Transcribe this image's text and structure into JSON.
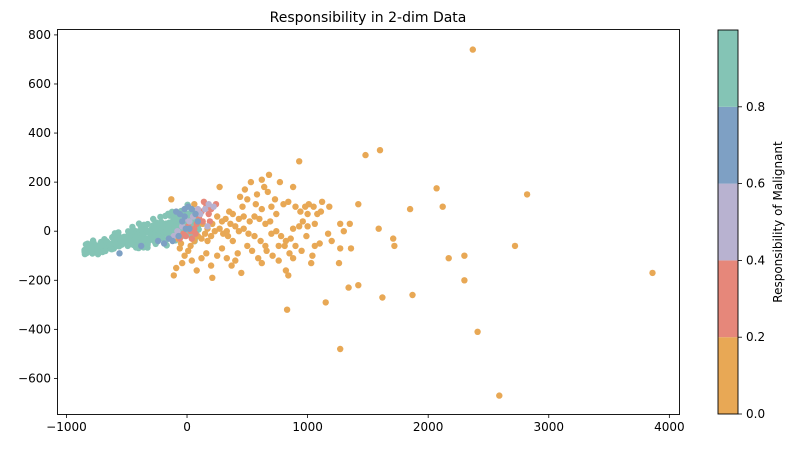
{
  "chart_data": {
    "type": "scatter",
    "title": "Responsibility in 2-dim Data",
    "xlim": [
      -1070,
      4080
    ],
    "ylim": [
      -745,
      820
    ],
    "xticks": [
      -1000,
      0,
      1000,
      2000,
      3000,
      4000
    ],
    "xtick_labels": [
      "−1000",
      "0",
      "1000",
      "2000",
      "3000",
      "4000"
    ],
    "yticks": [
      -600,
      -400,
      -200,
      0,
      200,
      400,
      600,
      800
    ],
    "ytick_labels": [
      "−600",
      "−400",
      "−200",
      "0",
      "200",
      "400",
      "600",
      "800"
    ],
    "grid": false,
    "colorbar": {
      "label": "Responsibility of Malignant",
      "range": [
        0,
        1
      ],
      "ticks": [
        0.0,
        0.2,
        0.4,
        0.6,
        0.8
      ],
      "tick_labels": [
        "0.0",
        "0.2",
        "0.4",
        "0.6",
        "0.8"
      ],
      "bins": [
        {
          "from": 0.0,
          "to": 0.2,
          "color": "#e8a855"
        },
        {
          "from": 0.2,
          "to": 0.4,
          "color": "#e6877a"
        },
        {
          "from": 0.4,
          "to": 0.6,
          "color": "#b8b2d0"
        },
        {
          "from": 0.6,
          "to": 0.8,
          "color": "#7ea0c4"
        },
        {
          "from": 0.8,
          "to": 1.0,
          "color": "#84c4b5"
        }
      ]
    },
    "points": [
      [
        2370,
        740,
        0.0
      ],
      [
        1600,
        330,
        0.0
      ],
      [
        1480,
        310,
        0.0
      ],
      [
        930,
        285,
        0.0
      ],
      [
        2820,
        150,
        0.0
      ],
      [
        2070,
        175,
        0.0
      ],
      [
        2120,
        100,
        0.0
      ],
      [
        1850,
        90,
        0.0
      ],
      [
        1420,
        110,
        0.0
      ],
      [
        1590,
        10,
        0.0
      ],
      [
        3860,
        -170,
        0.0
      ],
      [
        2720,
        -60,
        0.0
      ],
      [
        2300,
        -100,
        0.0
      ],
      [
        2170,
        -110,
        0.0
      ],
      [
        1720,
        -60,
        0.0
      ],
      [
        1710,
        -30,
        0.0
      ],
      [
        1360,
        -70,
        0.0
      ],
      [
        1620,
        -270,
        0.0
      ],
      [
        1870,
        -260,
        0.0
      ],
      [
        2300,
        -200,
        0.0
      ],
      [
        2410,
        -410,
        0.0
      ],
      [
        2590,
        -670,
        0.0
      ],
      [
        1270,
        -480,
        0.0
      ],
      [
        1150,
        -290,
        0.0
      ],
      [
        1420,
        -220,
        0.0
      ],
      [
        1340,
        -230,
        0.0
      ],
      [
        830,
        -320,
        0.0
      ],
      [
        820,
        -160,
        0.0
      ],
      [
        840,
        -180,
        0.0
      ],
      [
        1260,
        -130,
        0.0
      ],
      [
        1270,
        -70,
        0.0
      ],
      [
        1040,
        -100,
        0.0
      ],
      [
        1030,
        -130,
        0.0
      ],
      [
        1100,
        -50,
        0.0
      ],
      [
        1200,
        -40,
        0.0
      ],
      [
        1300,
        0,
        0.0
      ],
      [
        1270,
        30,
        0.0
      ],
      [
        1350,
        30,
        0.0
      ],
      [
        1010,
        110,
        0.0
      ],
      [
        1050,
        100,
        0.0
      ],
      [
        1110,
        80,
        0.0
      ],
      [
        1080,
        70,
        0.0
      ],
      [
        1000,
        70,
        0.0
      ],
      [
        980,
        100,
        0.0
      ],
      [
        940,
        80,
        0.0
      ],
      [
        900,
        100,
        0.0
      ],
      [
        840,
        120,
        0.0
      ],
      [
        800,
        110,
        0.0
      ],
      [
        770,
        200,
        0.0
      ],
      [
        880,
        180,
        0.0
      ],
      [
        620,
        210,
        0.0
      ],
      [
        640,
        180,
        0.0
      ],
      [
        670,
        160,
        0.0
      ],
      [
        530,
        200,
        0.0
      ],
      [
        480,
        170,
        0.0
      ],
      [
        440,
        140,
        0.0
      ],
      [
        500,
        130,
        0.0
      ],
      [
        570,
        110,
        0.0
      ],
      [
        620,
        90,
        0.0
      ],
      [
        700,
        100,
        0.0
      ],
      [
        740,
        70,
        0.0
      ],
      [
        690,
        40,
        0.0
      ],
      [
        650,
        30,
        0.0
      ],
      [
        600,
        50,
        0.0
      ],
      [
        560,
        60,
        0.0
      ],
      [
        520,
        40,
        0.0
      ],
      [
        470,
        60,
        0.0
      ],
      [
        430,
        50,
        0.0
      ],
      [
        400,
        20,
        0.0
      ],
      [
        360,
        30,
        0.0
      ],
      [
        320,
        50,
        0.0
      ],
      [
        290,
        40,
        0.0
      ],
      [
        270,
        180,
        0.0
      ],
      [
        350,
        80,
        0.0
      ],
      [
        380,
        70,
        0.0
      ],
      [
        430,
        0,
        0.0
      ],
      [
        470,
        10,
        0.0
      ],
      [
        510,
        -10,
        0.0
      ],
      [
        560,
        -20,
        0.0
      ],
      [
        610,
        -40,
        0.0
      ],
      [
        650,
        -60,
        0.0
      ],
      [
        700,
        -10,
        0.0
      ],
      [
        740,
        0,
        0.0
      ],
      [
        780,
        -20,
        0.0
      ],
      [
        820,
        -40,
        0.0
      ],
      [
        860,
        -30,
        0.0
      ],
      [
        900,
        -60,
        0.0
      ],
      [
        950,
        -80,
        0.0
      ],
      [
        880,
        10,
        0.0
      ],
      [
        930,
        20,
        0.0
      ],
      [
        960,
        40,
        0.0
      ],
      [
        1000,
        20,
        0.0
      ],
      [
        1060,
        30,
        0.0
      ],
      [
        380,
        -40,
        0.0
      ],
      [
        340,
        -20,
        0.0
      ],
      [
        300,
        -10,
        0.0
      ],
      [
        270,
        10,
        0.0
      ],
      [
        230,
        0,
        0.0
      ],
      [
        200,
        -20,
        0.0
      ],
      [
        170,
        -40,
        0.0
      ],
      [
        150,
        -10,
        0.0
      ],
      [
        120,
        -30,
        0.0
      ],
      [
        90,
        -20,
        0.0
      ],
      [
        60,
        -40,
        0.0
      ],
      [
        30,
        -60,
        0.0
      ],
      [
        10,
        -80,
        0.0
      ],
      [
        -20,
        -100,
        0.0
      ],
      [
        -40,
        -130,
        0.0
      ],
      [
        -60,
        -70,
        0.0
      ],
      [
        -90,
        -150,
        0.0
      ],
      [
        -110,
        -180,
        0.0
      ],
      [
        -80,
        -30,
        0.0
      ],
      [
        -50,
        -50,
        0.0
      ],
      [
        40,
        -120,
        0.0
      ],
      [
        80,
        -160,
        0.0
      ],
      [
        120,
        -110,
        0.0
      ],
      [
        160,
        -90,
        0.0
      ],
      [
        200,
        -140,
        0.0
      ],
      [
        210,
        -190,
        0.0
      ],
      [
        250,
        -100,
        0.0
      ],
      [
        290,
        -70,
        0.0
      ],
      [
        330,
        -110,
        0.0
      ],
      [
        370,
        -140,
        0.0
      ],
      [
        400,
        -120,
        0.0
      ],
      [
        420,
        -90,
        0.0
      ],
      [
        450,
        -170,
        0.0
      ],
      [
        500,
        -60,
        0.0
      ],
      [
        540,
        -80,
        0.0
      ],
      [
        590,
        -110,
        0.0
      ],
      [
        620,
        -130,
        0.0
      ],
      [
        660,
        -80,
        0.0
      ],
      [
        710,
        -100,
        0.0
      ],
      [
        760,
        -120,
        0.0
      ],
      [
        810,
        -60,
        0.0
      ],
      [
        850,
        -90,
        0.0
      ],
      [
        250,
        60,
        0.0
      ],
      [
        210,
        30,
        0.0
      ],
      [
        170,
        10,
        0.0
      ],
      [
        130,
        30,
        0.0
      ],
      [
        100,
        50,
        0.0
      ],
      [
        60,
        110,
        0.0
      ],
      [
        -130,
        130,
        0.0
      ],
      [
        330,
        0,
        0.0
      ],
      [
        460,
        100,
        0.0
      ],
      [
        580,
        150,
        0.0
      ],
      [
        730,
        130,
        0.0
      ],
      [
        680,
        230,
        0.0
      ],
      [
        1120,
        120,
        0.0
      ],
      [
        1180,
        100,
        0.0
      ],
      [
        1170,
        -10,
        0.0
      ],
      [
        990,
        -20,
        0.0
      ],
      [
        1060,
        -60,
        0.0
      ],
      [
        760,
        -60,
        0.0
      ],
      [
        880,
        -110,
        0.0
      ],
      [
        140,
        120,
        0.3
      ],
      [
        160,
        100,
        0.3
      ],
      [
        200,
        90,
        0.3
      ],
      [
        240,
        110,
        0.3
      ],
      [
        180,
        70,
        0.3
      ],
      [
        120,
        80,
        0.3
      ],
      [
        100,
        60,
        0.3
      ],
      [
        130,
        40,
        0.3
      ],
      [
        80,
        30,
        0.3
      ],
      [
        60,
        10,
        0.3
      ],
      [
        30,
        0,
        0.3
      ],
      [
        10,
        20,
        0.3
      ],
      [
        -10,
        -20,
        0.3
      ],
      [
        -30,
        -10,
        0.3
      ],
      [
        -60,
        -30,
        0.3
      ],
      [
        70,
        -10,
        0.3
      ],
      [
        40,
        -30,
        0.3
      ],
      [
        190,
        40,
        0.3
      ],
      [
        220,
        100,
        0.5
      ],
      [
        180,
        110,
        0.5
      ],
      [
        150,
        90,
        0.5
      ],
      [
        110,
        70,
        0.5
      ],
      [
        90,
        90,
        0.5
      ],
      [
        50,
        60,
        0.5
      ],
      [
        20,
        40,
        0.5
      ],
      [
        -20,
        50,
        0.5
      ],
      [
        -40,
        20,
        0.5
      ],
      [
        -80,
        0,
        0.5
      ],
      [
        -110,
        -20,
        0.5
      ],
      [
        170,
        20,
        0.5
      ],
      [
        -90,
        80,
        0.7
      ],
      [
        -60,
        70,
        0.7
      ],
      [
        -20,
        90,
        0.7
      ],
      [
        10,
        100,
        0.7
      ],
      [
        40,
        90,
        0.7
      ],
      [
        70,
        70,
        0.7
      ],
      [
        -40,
        40,
        0.7
      ],
      [
        -10,
        10,
        0.7
      ],
      [
        20,
        10,
        0.7
      ],
      [
        -70,
        -20,
        0.7
      ],
      [
        -120,
        -40,
        0.7
      ],
      [
        -150,
        -30,
        0.7
      ],
      [
        -190,
        -50,
        0.7
      ],
      [
        -240,
        -40,
        0.7
      ],
      [
        -380,
        -60,
        0.7
      ],
      [
        -560,
        -90,
        0.7
      ],
      [
        -20,
        60,
        0.7
      ],
      [
        90,
        40,
        0.7
      ]
    ],
    "cluster": {
      "responsibility": 0.9,
      "count": 340,
      "x_from": -850,
      "x_to": 100,
      "y_center_at_start": -75,
      "y_center_at_end": 40,
      "y_spread_at_start": 15,
      "y_spread_at_end": 50
    }
  }
}
